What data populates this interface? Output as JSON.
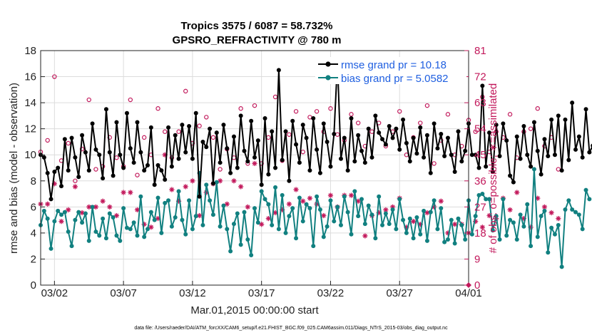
{
  "chart_data": {
    "type": "line",
    "title": "Tropics 3575 / 6087 = 58.732%",
    "subtitle": "GPSRO_REFRACTIVITY @ 780 m",
    "ylabel": "rmse and bias (model - observation)",
    "ylabel_right": "# of obs: o=possible; ∗=assimilated",
    "xlabel": "Mar.01,2015 00:00:00 start",
    "footnote": "data file: /Users/raeder/DAI/ATM_forcXX/CAM6_setup/f.e21.FHIST_BGC.f09_025.CAM6assim.011/Diags_NTrS_2015-03/obs_diag_output.nc",
    "ylim": [
      0,
      18
    ],
    "y_ticks": [
      "0",
      "2",
      "4",
      "6",
      "8",
      "10",
      "12",
      "14",
      "16",
      "18"
    ],
    "ylim_right": [
      0,
      81
    ],
    "y_ticks_right": [
      "0",
      "9",
      "18",
      "27",
      "36",
      "45",
      "54",
      "63",
      "72",
      "81"
    ],
    "xlim": [
      0,
      31
    ],
    "x_ticks": [
      {
        "day": 1,
        "label": "03/02"
      },
      {
        "day": 6,
        "label": "03/07"
      },
      {
        "day": 11,
        "label": "03/12"
      },
      {
        "day": 16,
        "label": "03/17"
      },
      {
        "day": 21,
        "label": "03/22"
      },
      {
        "day": 26,
        "label": "03/27"
      },
      {
        "day": 31,
        "label": "04/01"
      }
    ],
    "legend_position": "top-right",
    "series": [
      {
        "name": "rmse grand pr = 10.18",
        "color": "#000000",
        "axis": "left",
        "x0": 0.0,
        "dx": 0.25,
        "values": [
          10.0,
          9.8,
          8.6,
          6.6,
          8.7,
          9.0,
          7.6,
          11.2,
          8.8,
          11.3,
          9.8,
          8.3,
          11.5,
          10.2,
          8.8,
          12.4,
          10.4,
          10.0,
          8.2,
          13.5,
          10.2,
          8.4,
          12.5,
          10.0,
          9.0,
          13.2,
          10.5,
          9.4,
          12.5,
          10.2,
          8.8,
          9.2,
          12.1,
          7.7,
          9.2,
          8.8,
          8.1,
          12.1,
          9.1,
          11.5,
          9.7,
          12.3,
          10.2,
          12.2,
          9.7,
          13.2,
          6.8,
          11.0,
          10.6,
          12.0,
          7.8,
          11.7,
          9.4,
          12.3,
          10.5,
          8.6,
          11.4,
          9.0,
          13.0,
          10.3,
          9.5,
          12.6,
          9.8,
          11.1,
          7.7,
          12.8,
          8.5,
          11.8,
          9.0,
          16.5,
          9.6,
          11.8,
          8.0,
          12.6,
          10.8,
          9.4,
          12.3,
          11.3,
          8.8,
          12.8,
          10.4,
          8.6,
          12.4,
          11.0,
          9.1,
          11.6,
          17.1,
          9.7,
          11.3,
          8.8,
          12.8,
          9.5,
          11.5,
          10.3,
          9.4,
          12.0,
          9.8,
          13.0,
          11.7,
          11.2,
          10.8,
          12.2,
          11.3,
          12.0,
          10.4,
          12.7,
          10.9,
          9.5,
          11.3,
          10.1,
          12.1,
          9.8,
          11.5,
          8.6,
          12.4,
          10.5,
          11.6,
          9.9,
          11.3,
          10.0,
          8.7,
          11.8,
          9.5,
          10.3,
          12.4,
          10.0,
          10.0,
          9.0,
          15.3,
          9.1,
          11.7,
          8.7,
          12.3,
          9.9,
          12.4,
          11.1,
          8.4,
          7.9,
          11.4,
          9.7,
          12.2,
          10.0,
          9.1,
          12.5,
          10.3,
          8.5,
          11.2,
          9.9,
          12.7,
          10.0,
          13.0,
          8.8,
          12.7,
          9.6,
          14.0,
          10.4,
          11.4,
          9.8,
          13.5,
          10.2,
          10.7,
          12.0,
          10.5
        ]
      },
      {
        "name": "bias grand pr = 5.0582",
        "color": "#118080",
        "axis": "left",
        "x0": 0.0,
        "dx": 0.25,
        "values": [
          4.6,
          5.7,
          5.1,
          2.8,
          4.9,
          5.7,
          5.4,
          5.6,
          4.1,
          3.0,
          5.0,
          5.6,
          4.8,
          5.5,
          3.4,
          6.0,
          4.1,
          3.8,
          5.1,
          3.6,
          5.5,
          5.2,
          3.8,
          3.4,
          5.9,
          4.4,
          4.3,
          4.8,
          3.8,
          6.8,
          3.7,
          4.3,
          5.6,
          5.0,
          6.7,
          4.0,
          6.3,
          6.5,
          4.5,
          5.2,
          7.2,
          5.0,
          3.9,
          6.5,
          4.3,
          5.3,
          8.6,
          4.6,
          7.7,
          6.5,
          5.4,
          7.9,
          4.5,
          6.1,
          4.3,
          2.6,
          4.7,
          5.5,
          3.1,
          5.6,
          3.5,
          2.3,
          5.9,
          4.8,
          7.2,
          6.6,
          6.2,
          4.6,
          7.5,
          4.3,
          6.9,
          4.0,
          5.3,
          5.9,
          3.6,
          6.7,
          4.9,
          6.2,
          5.9,
          3.0,
          6.8,
          5.8,
          3.7,
          4.5,
          6.5,
          4.9,
          6.0,
          4.6,
          6.8,
          5.6,
          3.9,
          7.2,
          5.3,
          6.6,
          4.7,
          6.1,
          5.4,
          3.6,
          6.8,
          4.6,
          5.5,
          4.7,
          5.8,
          4.3,
          6.6,
          5.0,
          4.0,
          5.1,
          3.6,
          5.2,
          3.9,
          5.7,
          3.4,
          5.6,
          6.5,
          4.3,
          5.9,
          3.3,
          3.5,
          5.0,
          3.2,
          5.1,
          4.6,
          3.5,
          6.5,
          3.9,
          5.3,
          6.9,
          7.0,
          6.6,
          6.6,
          4.2,
          5.3,
          3.5,
          6.6,
          3.8,
          5.0,
          4.8,
          3.5,
          5.4,
          4.5,
          6.2,
          3.0,
          8.9,
          3.7,
          5.3,
          5.7,
          2.5,
          4.4,
          3.9,
          4.6,
          1.4,
          5.8,
          6.5,
          5.8,
          5.6,
          5.4,
          4.3,
          7.3,
          6.6
        ]
      },
      {
        "name": "possible",
        "marker": "circle",
        "color": "#c2185b",
        "axis": "right",
        "x0": 0.0,
        "dx": 0.5,
        "values": [
          46,
          50,
          72,
          43,
          49,
          36,
          47,
          64,
          40,
          41,
          51,
          44,
          41,
          64,
          38,
          51,
          45,
          61,
          53,
          44,
          53,
          67,
          49,
          55,
          58,
          51,
          40,
          47,
          44,
          61,
          42,
          62,
          42,
          51,
          65,
          43,
          52,
          60,
          46,
          58,
          60,
          53,
          61,
          52,
          50,
          59,
          56,
          48,
          53,
          56,
          48,
          53,
          60,
          45,
          51,
          56,
          62,
          42,
          50,
          59,
          45,
          48,
          57,
          53,
          65,
          46,
          53,
          51,
          59,
          44,
          53,
          54,
          61,
          48,
          51,
          40
        ]
      },
      {
        "name": "assimilated",
        "marker": "asterisk",
        "color": "#c2185b",
        "axis": "right",
        "x0": 0.0,
        "dx": 0.5,
        "values": [
          28,
          28,
          35,
          22,
          26,
          34,
          25,
          27,
          27,
          29,
          27,
          24,
          32,
          32,
          26,
          21,
          20,
          23,
          45,
          33,
          29,
          34,
          36,
          24,
          32,
          35,
          36,
          28,
          36,
          34,
          27,
          42,
          21,
          23,
          25,
          26,
          28,
          33,
          29,
          30,
          28,
          24,
          31,
          27,
          31,
          31,
          29,
          17,
          24,
          25,
          26,
          27,
          30,
          20,
          22,
          21,
          25,
          27,
          29,
          18,
          21,
          21,
          18,
          22,
          20,
          24,
          23,
          30,
          26,
          32,
          23,
          20,
          30,
          27,
          25,
          23
        ]
      }
    ]
  }
}
